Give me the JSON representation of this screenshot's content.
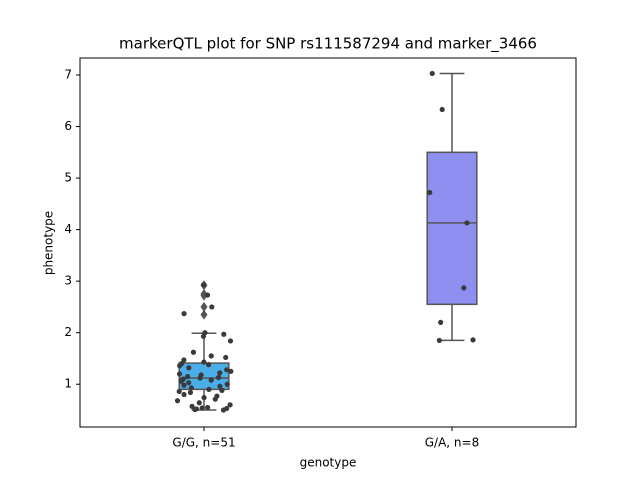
{
  "chart_data": {
    "type": "box",
    "title": "markerQTL plot for SNP rs111587294 and marker_3466",
    "xlabel": "genotype",
    "ylabel": "phenotype",
    "categories": [
      "G/G, n=51",
      "G/A, n=8"
    ],
    "ylim": [
      0.17,
      7.33
    ],
    "yticks": [
      1,
      2,
      3,
      4,
      5,
      6,
      7
    ],
    "point_color": "#3a3a3a",
    "line_color": "#555555",
    "boxes": [
      {
        "color": "#4aaee8",
        "whislo": 0.5,
        "q1": 0.9,
        "med": 1.12,
        "q3": 1.41,
        "whishi": 1.99,
        "fliers": [
          2.35,
          2.5,
          2.72,
          2.75,
          2.92
        ],
        "points": [
          2.93,
          2.73,
          2.5,
          2.37,
          2.0,
          1.97,
          1.93,
          1.84,
          1.62,
          1.55,
          1.52,
          1.47,
          1.43,
          1.4,
          1.38,
          1.36,
          1.32,
          1.28,
          1.25,
          1.22,
          1.2,
          1.18,
          1.15,
          1.13,
          1.12,
          1.1,
          1.08,
          1.06,
          1.03,
          1.0,
          0.98,
          0.96,
          0.93,
          0.9,
          0.88,
          0.86,
          0.84,
          0.8,
          0.77,
          0.74,
          0.71,
          0.68,
          0.64,
          0.6,
          0.57,
          0.55,
          0.54,
          0.53,
          0.52,
          0.51,
          0.5
        ]
      },
      {
        "color": "#8f8ff2",
        "whislo": 1.85,
        "q1": 2.55,
        "med": 4.13,
        "q3": 5.5,
        "whishi": 7.03,
        "fliers": [],
        "points": [
          7.03,
          6.33,
          4.72,
          4.13,
          2.87,
          2.2,
          1.86,
          1.85
        ]
      }
    ]
  }
}
